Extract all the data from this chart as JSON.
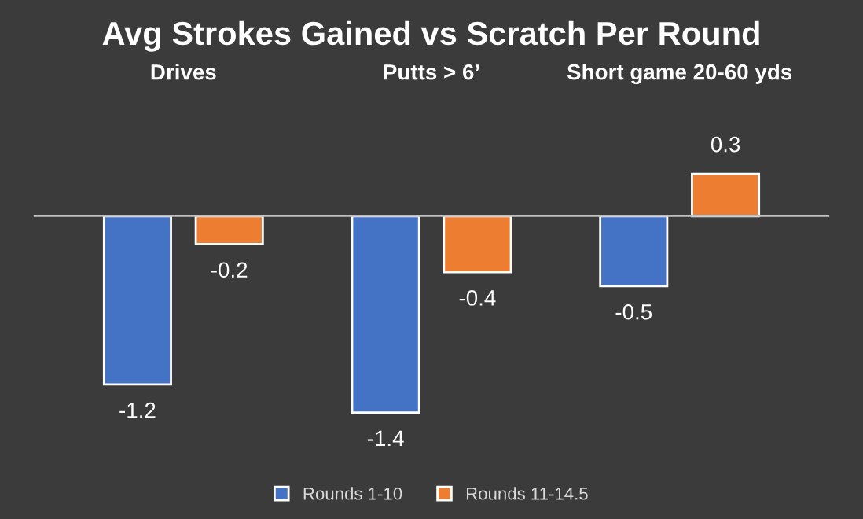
{
  "chart_data": {
    "type": "bar",
    "title": "Avg Strokes Gained vs Scratch Per Round",
    "categories": [
      "Drives",
      "Putts > 6’",
      "Short game 20-60 yds"
    ],
    "series": [
      {
        "name": "Rounds 1-10",
        "color": "#4472c4",
        "values": [
          -1.2,
          -1.4,
          -0.5
        ]
      },
      {
        "name": "Rounds 11-14.5",
        "color": "#ed7d31",
        "values": [
          -0.2,
          -0.4,
          0.3
        ]
      }
    ],
    "data_labels": true,
    "legend": "bottom",
    "grid": false
  }
}
